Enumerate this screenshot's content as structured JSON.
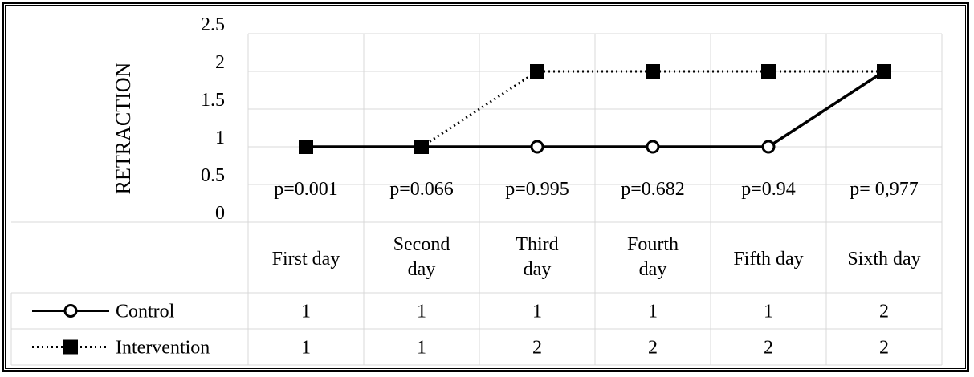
{
  "chart_data": {
    "type": "line",
    "title": "",
    "xlabel": "",
    "ylabel": "RETRACTION",
    "ylim": [
      0,
      2.5
    ],
    "yticks": [
      "0",
      "0.5",
      "1",
      "1.5",
      "2",
      "2.5"
    ],
    "grid": true,
    "legend": "data-table",
    "categories": [
      [
        "First day"
      ],
      [
        "Second",
        "day"
      ],
      [
        "Third",
        "day"
      ],
      [
        "Fourth",
        "day"
      ],
      [
        "Fifth day"
      ],
      [
        "Sixth day"
      ]
    ],
    "annotations": [
      "p=0.001",
      "p=0.066",
      "p=0.995",
      "p=0.682",
      "p=0.94",
      "p= 0,977"
    ],
    "series": [
      {
        "name": "Control",
        "values": [
          1,
          1,
          1,
          1,
          1,
          2
        ],
        "marker": "open-circle",
        "line": "solid",
        "color": "#000000"
      },
      {
        "name": "Intervention",
        "values": [
          1,
          1,
          2,
          2,
          2,
          2
        ],
        "marker": "filled-square",
        "line": "dotted",
        "color": "#000000"
      }
    ],
    "table_values": [
      [
        "1",
        "1",
        "1",
        "1",
        "1",
        "2"
      ],
      [
        "1",
        "1",
        "2",
        "2",
        "2",
        "2"
      ]
    ]
  }
}
